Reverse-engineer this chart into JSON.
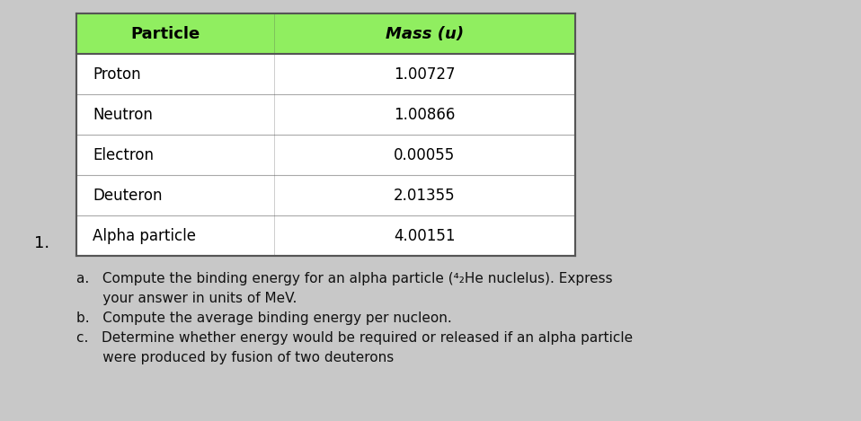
{
  "table_headers": [
    "Particle",
    "Mass (u)"
  ],
  "table_rows": [
    [
      "Proton",
      "1.00727"
    ],
    [
      "Neutron",
      "1.00866"
    ],
    [
      "Electron",
      "0.00055"
    ],
    [
      "Deuteron",
      "2.01355"
    ],
    [
      "Alpha particle",
      "4.00151"
    ]
  ],
  "header_bg_color": "#90EE60",
  "header_text_color": "#000000",
  "row_bg_color": "#FFFFFF",
  "table_border_color": "#555555",
  "label_number": "1.",
  "question_lines": [
    "a.   Compute the binding energy for an alpha particle (⁴₂He nuclelus). Express",
    "      your answer in units of MeV.",
    "b.   Compute the average binding energy per nucleon.",
    "c.   Determine whether energy would be required or released if an alpha particle",
    "      were produced by fusion of two deuterons"
  ],
  "background_color": "#C8C8C8",
  "fig_width": 9.58,
  "fig_height": 4.69
}
